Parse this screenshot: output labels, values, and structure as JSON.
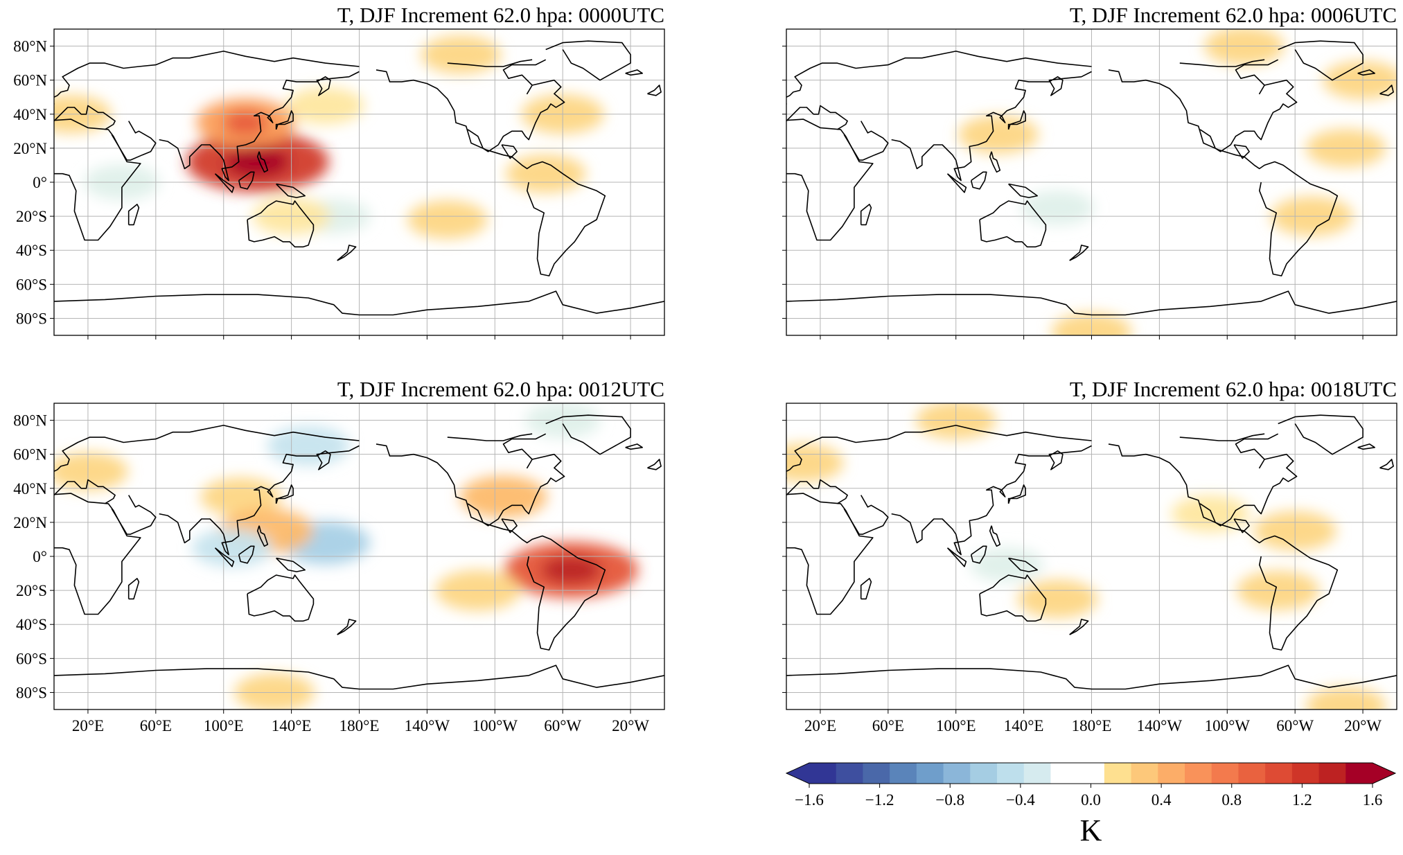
{
  "figure": {
    "colorbar": {
      "unit": "K",
      "ticks": [
        "−1.6",
        "−1.2",
        "−0.8",
        "−0.4",
        "0.0",
        "0.4",
        "0.8",
        "1.2",
        "1.6"
      ],
      "range": [
        -1.6,
        1.6
      ],
      "levels": 24,
      "extend": "both",
      "colormap": "RdYlBu_r"
    },
    "lat_ticks": [
      "80°N",
      "60°N",
      "40°N",
      "20°N",
      "0°",
      "20°S",
      "40°S",
      "60°S",
      "80°S"
    ],
    "lat_values": [
      80,
      60,
      40,
      20,
      0,
      -20,
      -40,
      -60,
      -80
    ],
    "lon_ticks": [
      "20°E",
      "60°E",
      "100°E",
      "140°E",
      "180°E",
      "140°W",
      "100°W",
      "60°W",
      "20°W"
    ],
    "lon_values": [
      20,
      60,
      100,
      140,
      180,
      220,
      260,
      300,
      340
    ],
    "lon_range": [
      0,
      360
    ],
    "lat_range": [
      -90,
      90
    ],
    "panels": [
      {
        "title": "T, DJF Increment 62.0 hpa: 0000UTC",
        "show_lat_labels": true,
        "show_lon_labels": false,
        "blobs": [
          {
            "lon": 120,
            "lat": 12,
            "value": 1.2
          },
          {
            "lon": 113,
            "lat": 35,
            "value": 0.7
          },
          {
            "lon": 300,
            "lat": 40,
            "value": 0.35
          },
          {
            "lon": 240,
            "lat": 75,
            "value": 0.3
          },
          {
            "lon": 165,
            "lat": -20,
            "value": -0.15
          },
          {
            "lon": 40,
            "lat": 0,
            "value": -0.2
          },
          {
            "lon": 232,
            "lat": -22,
            "value": 0.3
          },
          {
            "lon": 160,
            "lat": 45,
            "value": 0.25
          },
          {
            "lon": 10,
            "lat": 40,
            "value": 0.3
          },
          {
            "lon": 290,
            "lat": 5,
            "value": 0.3
          },
          {
            "lon": 140,
            "lat": -20,
            "value": 0.25
          }
        ]
      },
      {
        "title": "T, DJF Increment 62.0 hpa: 0006UTC",
        "show_lat_labels": false,
        "show_lon_labels": false,
        "blobs": [
          {
            "lon": 310,
            "lat": -20,
            "value": 0.35
          },
          {
            "lon": 330,
            "lat": 20,
            "value": 0.3
          },
          {
            "lon": 270,
            "lat": 80,
            "value": 0.3
          },
          {
            "lon": 160,
            "lat": -15,
            "value": -0.15
          },
          {
            "lon": 180,
            "lat": -88,
            "value": 0.3
          },
          {
            "lon": 125,
            "lat": 28,
            "value": 0.3
          },
          {
            "lon": 340,
            "lat": 60,
            "value": 0.3
          }
        ]
      },
      {
        "title": "T, DJF Increment 62.0 hpa: 0012UTC",
        "show_lat_labels": true,
        "show_lon_labels": true,
        "blobs": [
          {
            "lon": 305,
            "lat": -8,
            "value": 1.0
          },
          {
            "lon": 265,
            "lat": 35,
            "value": 0.45
          },
          {
            "lon": 160,
            "lat": 8,
            "value": -0.5
          },
          {
            "lon": 250,
            "lat": -20,
            "value": 0.4
          },
          {
            "lon": 150,
            "lat": 65,
            "value": -0.35
          },
          {
            "lon": 20,
            "lat": 50,
            "value": 0.3
          },
          {
            "lon": 110,
            "lat": 35,
            "value": 0.3
          },
          {
            "lon": 300,
            "lat": 80,
            "value": -0.2
          },
          {
            "lon": 125,
            "lat": 15,
            "value": 0.6
          },
          {
            "lon": 105,
            "lat": 5,
            "value": -0.3
          },
          {
            "lon": 130,
            "lat": -80,
            "value": 0.3
          }
        ]
      },
      {
        "title": "T, DJF Increment 62.0 hpa: 0018UTC",
        "show_lat_labels": false,
        "show_lon_labels": true,
        "blobs": [
          {
            "lon": 300,
            "lat": 15,
            "value": 0.35
          },
          {
            "lon": 290,
            "lat": -20,
            "value": 0.35
          },
          {
            "lon": 160,
            "lat": -25,
            "value": 0.3
          },
          {
            "lon": 130,
            "lat": -5,
            "value": -0.15
          },
          {
            "lon": 250,
            "lat": 25,
            "value": 0.25
          },
          {
            "lon": 100,
            "lat": 80,
            "value": 0.3
          },
          {
            "lon": 10,
            "lat": 55,
            "value": 0.3
          },
          {
            "lon": 330,
            "lat": -88,
            "value": 0.3
          }
        ]
      }
    ]
  }
}
